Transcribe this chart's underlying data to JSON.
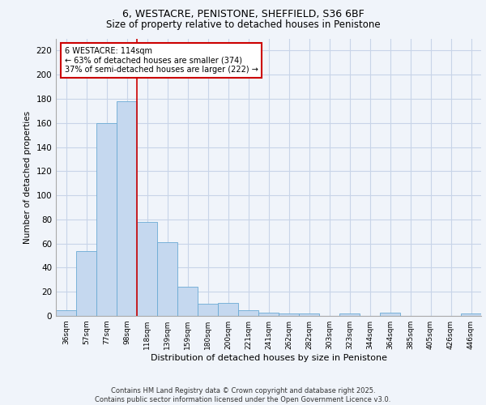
{
  "title1": "6, WESTACRE, PENISTONE, SHEFFIELD, S36 6BF",
  "title2": "Size of property relative to detached houses in Penistone",
  "xlabel": "Distribution of detached houses by size in Penistone",
  "ylabel": "Number of detached properties",
  "categories": [
    "36sqm",
    "57sqm",
    "77sqm",
    "98sqm",
    "118sqm",
    "139sqm",
    "159sqm",
    "180sqm",
    "200sqm",
    "221sqm",
    "241sqm",
    "262sqm",
    "282sqm",
    "303sqm",
    "323sqm",
    "344sqm",
    "364sqm",
    "385sqm",
    "405sqm",
    "426sqm",
    "446sqm"
  ],
  "values": [
    5,
    54,
    160,
    178,
    78,
    61,
    24,
    10,
    11,
    5,
    3,
    2,
    2,
    0,
    2,
    0,
    3,
    0,
    0,
    0,
    2
  ],
  "bar_color": "#c5d8ef",
  "bar_edge_color": "#6aaad4",
  "grid_color": "#c8d4e8",
  "background_color": "#f0f4fa",
  "annotation_text": "6 WESTACRE: 114sqm\n← 63% of detached houses are smaller (374)\n37% of semi-detached houses are larger (222) →",
  "annotation_box_color": "#ffffff",
  "annotation_box_edge": "#cc0000",
  "line_color": "#cc0000",
  "ylim": [
    0,
    230
  ],
  "yticks": [
    0,
    20,
    40,
    60,
    80,
    100,
    120,
    140,
    160,
    180,
    200,
    220
  ],
  "footer": "Contains HM Land Registry data © Crown copyright and database right 2025.\nContains public sector information licensed under the Open Government Licence v3.0."
}
